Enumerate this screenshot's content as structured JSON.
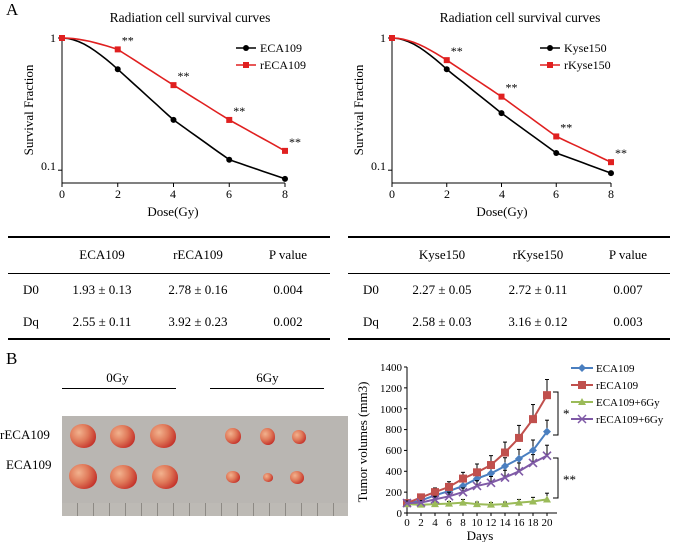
{
  "labels": {
    "panel_a": "A",
    "panel_b": "B"
  },
  "colors": {
    "black_series": "#000000",
    "red_series": "#e02020",
    "blue": "#4a7fc0",
    "dark_red": "#c0504d",
    "green": "#9bbb59",
    "purple": "#7f5aa6"
  },
  "stars": "**",
  "survival_left": {
    "title": "Radiation cell survival curves",
    "xlabel": "Dose(Gy)",
    "ylabel": "Survival Fraction",
    "xticks": [
      "0",
      "2",
      "4",
      "6",
      "8"
    ],
    "yticks": [
      "1",
      "0.1"
    ],
    "legend": [
      "ECA109",
      "rECA109"
    ]
  },
  "survival_right": {
    "title": "Radiation cell survival curves",
    "xlabel": "Dose(Gy)",
    "ylabel": "Survival Fraction",
    "xticks": [
      "0",
      "2",
      "4",
      "6",
      "8"
    ],
    "yticks": [
      "1",
      "0.1"
    ],
    "legend": [
      "Kyse150",
      "rKyse150"
    ]
  },
  "table_left": {
    "headers": [
      "",
      "ECA109",
      "rECA109",
      "P value"
    ],
    "rows": [
      [
        "D0",
        "1.93 ± 0.13",
        "2.78 ± 0.16",
        "0.004"
      ],
      [
        "Dq",
        "2.55 ± 0.11",
        "3.92 ± 0.23",
        "0.002"
      ]
    ]
  },
  "table_right": {
    "headers": [
      "",
      "Kyse150",
      "rKyse150",
      "P value"
    ],
    "rows": [
      [
        "D0",
        "2.27 ± 0.05",
        "2.72 ± 0.11",
        "0.007"
      ],
      [
        "Dq",
        "2.58 ± 0.03",
        "3.16 ± 0.12",
        "0.003"
      ]
    ]
  },
  "photo": {
    "group_0": "0Gy",
    "group_6": "6Gy",
    "row_top": "rECA109",
    "row_bottom": "ECA109"
  },
  "growth": {
    "ylabel": "Tumor volumes (mm3)",
    "xlabel": "Days",
    "xticks": [
      "0",
      "2",
      "4",
      "6",
      "8",
      "10",
      "12",
      "14",
      "16",
      "18",
      "20"
    ],
    "yticks": [
      "0",
      "200",
      "400",
      "600",
      "800",
      "1000",
      "1200",
      "1400"
    ],
    "sig_top": "*",
    "sig_bottom": "**",
    "legend": [
      "ECA109",
      "rECA109",
      "ECA109+6Gy",
      "rECA109+6Gy"
    ]
  },
  "chart_data": [
    {
      "type": "line",
      "title": "Radiation cell survival curves",
      "xlabel": "Dose(Gy)",
      "ylabel": "Survival Fraction",
      "yscale": "log",
      "xlim": [
        0,
        8
      ],
      "ylim": [
        0.08,
        1
      ],
      "x": [
        0,
        2,
        4,
        6,
        8
      ],
      "series": [
        {
          "name": "ECA109",
          "values": [
            1.0,
            0.58,
            0.24,
            0.12,
            0.086
          ]
        },
        {
          "name": "rECA109",
          "values": [
            1.0,
            0.82,
            0.44,
            0.24,
            0.14
          ]
        }
      ],
      "annotations": [
        "**",
        "**",
        "**",
        "**"
      ]
    },
    {
      "type": "line",
      "title": "Radiation cell survival curves",
      "xlabel": "Dose(Gy)",
      "ylabel": "Survival Fraction",
      "yscale": "log",
      "xlim": [
        0,
        8
      ],
      "ylim": [
        0.08,
        1
      ],
      "x": [
        0,
        2,
        4,
        6,
        8
      ],
      "series": [
        {
          "name": "Kyse150",
          "values": [
            1.0,
            0.58,
            0.27,
            0.135,
            0.095
          ]
        },
        {
          "name": "rKyse150",
          "values": [
            1.0,
            0.68,
            0.36,
            0.18,
            0.115
          ]
        }
      ],
      "annotations": [
        "**",
        "**",
        "**",
        "**"
      ]
    },
    {
      "type": "line",
      "xlabel": "Days",
      "ylabel": "Tumor volumes (mm3)",
      "xlim": [
        0,
        20
      ],
      "ylim": [
        0,
        1400
      ],
      "x": [
        0,
        2,
        4,
        6,
        8,
        10,
        12,
        14,
        16,
        18,
        20
      ],
      "series": [
        {
          "name": "ECA109",
          "values": [
            90,
            120,
            170,
            210,
            260,
            330,
            380,
            450,
            520,
            600,
            780
          ],
          "errors": [
            20,
            30,
            40,
            40,
            60,
            70,
            70,
            80,
            90,
            100,
            110
          ]
        },
        {
          "name": "rECA109",
          "values": [
            95,
            150,
            200,
            250,
            330,
            390,
            460,
            580,
            720,
            900,
            1130
          ],
          "errors": [
            20,
            30,
            40,
            50,
            60,
            80,
            90,
            100,
            120,
            140,
            150
          ]
        },
        {
          "name": "ECA109+6Gy",
          "values": [
            85,
            80,
            85,
            90,
            100,
            85,
            80,
            85,
            100,
            110,
            130
          ],
          "errors": [
            20,
            20,
            20,
            20,
            30,
            20,
            20,
            20,
            30,
            40,
            60
          ]
        },
        {
          "name": "rECA109+6Gy",
          "values": [
            95,
            100,
            130,
            160,
            200,
            260,
            290,
            340,
            400,
            480,
            550
          ],
          "errors": [
            20,
            20,
            30,
            40,
            40,
            50,
            60,
            70,
            80,
            80,
            100
          ]
        }
      ],
      "annotations": [
        "*",
        "**"
      ]
    }
  ]
}
